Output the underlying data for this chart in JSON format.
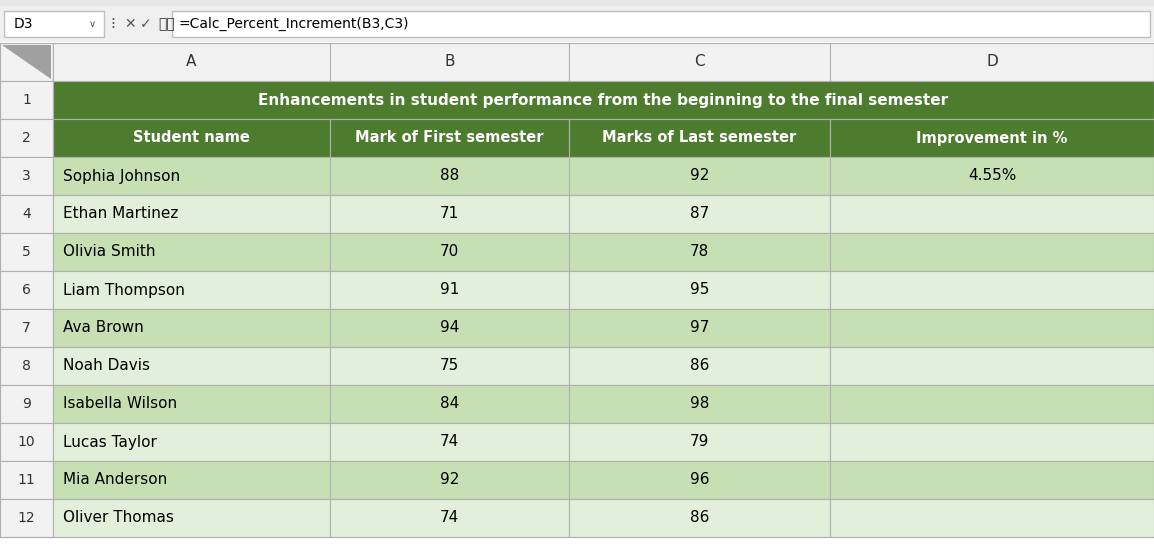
{
  "formula_bar_text": "=Calc_Percent_Increment(B3,C3)",
  "cell_ref": "D3",
  "col_letters": [
    "A",
    "B",
    "C",
    "D"
  ],
  "title_text": "Enhancements in student performance from the beginning to the final semester",
  "headers": [
    "Student name",
    "Mark of First semester",
    "Marks of Last semester",
    "Improvement in %"
  ],
  "students": [
    [
      "Sophia Johnson",
      "88",
      "92",
      "4.55%"
    ],
    [
      "Ethan Martinez",
      "71",
      "87",
      ""
    ],
    [
      "Olivia Smith",
      "70",
      "78",
      ""
    ],
    [
      "Liam Thompson",
      "91",
      "95",
      ""
    ],
    [
      "Ava Brown",
      "94",
      "97",
      ""
    ],
    [
      "Noah Davis",
      "75",
      "86",
      ""
    ],
    [
      "Isabella Wilson",
      "84",
      "98",
      ""
    ],
    [
      "Lucas Taylor",
      "74",
      "79",
      ""
    ],
    [
      "Mia Anderson",
      "92",
      "96",
      ""
    ],
    [
      "Oliver Thomas",
      "74",
      "86",
      ""
    ]
  ],
  "dark_green": "#4e7c2f",
  "light_green_odd": "#c6e0b4",
  "light_green_even": "#e2efda",
  "border_color": "#b0b0b0",
  "fig_bg": "#ffffff",
  "col_header_bg": "#f2f2f2",
  "row_num_bg": "#f2f2f2",
  "formula_bar_bg": "#ffffff",
  "fb_border": "#d0d0d0",
  "top_bar_bg": "#f0f0f0"
}
